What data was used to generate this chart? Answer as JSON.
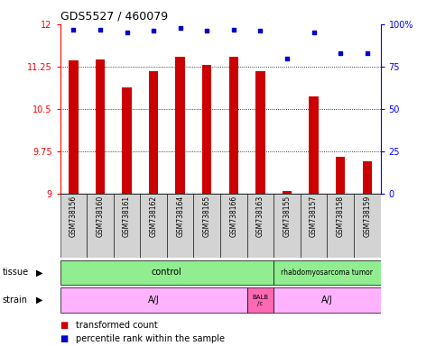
{
  "title": "GDS5527 / 460079",
  "samples": [
    "GSM738156",
    "GSM738160",
    "GSM738161",
    "GSM738162",
    "GSM738164",
    "GSM738165",
    "GSM738166",
    "GSM738163",
    "GSM738155",
    "GSM738157",
    "GSM738158",
    "GSM738159"
  ],
  "transformed_counts": [
    11.36,
    11.37,
    10.88,
    11.17,
    11.43,
    11.28,
    11.42,
    11.17,
    9.05,
    10.73,
    9.65,
    9.58
  ],
  "percentile_ranks": [
    97,
    97,
    95,
    96,
    98,
    96,
    97,
    96,
    80,
    95,
    83,
    83
  ],
  "ylim_left": [
    9.0,
    12.0
  ],
  "ylim_right": [
    0,
    100
  ],
  "yticks_left": [
    9.0,
    9.75,
    10.5,
    11.25,
    12.0
  ],
  "ytick_labels_left": [
    "9",
    "9.75",
    "10.5",
    "11.25",
    "12"
  ],
  "yticks_right": [
    0,
    25,
    50,
    75,
    100
  ],
  "ytick_labels_right": [
    "0",
    "25",
    "50",
    "75",
    "100%"
  ],
  "bar_color": "#CC0000",
  "dot_color": "#0000CC",
  "plot_bg": "#FFFFFF",
  "sample_box_color": "#D3D3D3",
  "tissue_control_color": "#90EE90",
  "tissue_tumor_color": "#90EE90",
  "strain_aj_color": "#FFB3FF",
  "strain_balb_color": "#FF69B4",
  "n_control": 8,
  "balb_index": 7,
  "n_tumor": 4
}
